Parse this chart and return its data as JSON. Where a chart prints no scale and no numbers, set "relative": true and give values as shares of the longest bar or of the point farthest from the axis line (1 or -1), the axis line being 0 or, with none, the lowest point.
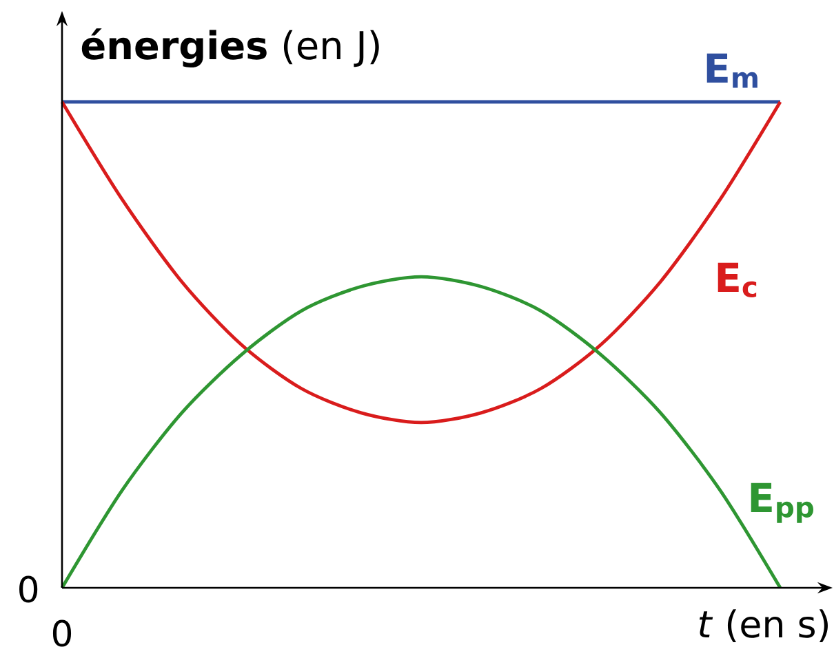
{
  "chart_data": {
    "type": "line",
    "relative": true,
    "ylabel": "**énergies** (en J)",
    "xlabel": "*t* (en s)",
    "categories": [
      null,
      null,
      null,
      null,
      null,
      null,
      null,
      null,
      null,
      null,
      null,
      null,
      null
    ],
    "series": [
      {
        "name": "E$_{m}$",
        "color": "#2f4f9f",
        "values": [
          1,
          1,
          1,
          1,
          1,
          1,
          1,
          1,
          1,
          1,
          1,
          1,
          1
        ]
      },
      {
        "name": "E$_{c}$",
        "color": "#d91c1c",
        "values": [
          1.0,
          0.8,
          0.63,
          0.5,
          0.41,
          0.36,
          0.34,
          0.36,
          0.41,
          0.5,
          0.63,
          0.8,
          1.0
        ]
      },
      {
        "name": "E$_{pp}$",
        "color": "#2e9632",
        "values": [
          0,
          0.2,
          0.36,
          0.48,
          0.57,
          0.62,
          0.64,
          0.62,
          0.57,
          0.48,
          0.36,
          0.2,
          0
        ]
      }
    ],
    "annotations": [
      "0",
      "0"
    ]
  }
}
